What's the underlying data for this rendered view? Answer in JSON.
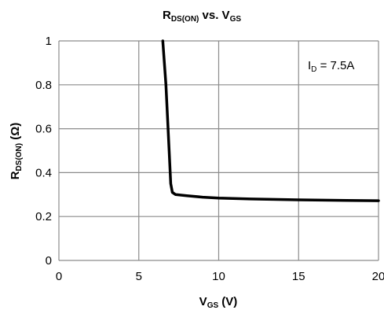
{
  "chart_data": {
    "type": "line",
    "title": {
      "main": "R",
      "main_sub": "DS(ON)",
      "mid": " vs. V",
      "end_sub": "GS"
    },
    "xlabel": {
      "main": "V",
      "sub": "GS",
      "rest": " (V)"
    },
    "ylabel": {
      "main": "R",
      "sub": "DS(ON)",
      "rest": " (Ω)"
    },
    "xlim": [
      0,
      20
    ],
    "ylim": [
      0,
      1
    ],
    "x_ticks": [
      0,
      5,
      10,
      15,
      20
    ],
    "x_tick_labels": [
      "0",
      "5",
      "10",
      "15",
      "20"
    ],
    "y_ticks": [
      0,
      0.2,
      0.4,
      0.6,
      0.8,
      1
    ],
    "y_tick_labels": [
      "0",
      "0.2",
      "0.4",
      "0.6",
      "0.8",
      "1"
    ],
    "grid": true,
    "annotation": {
      "main": "I",
      "sub": "D",
      "rest": " = 7.5A"
    },
    "series": [
      {
        "color": "#000000",
        "x": [
          6.5,
          6.7,
          6.9,
          7.0,
          7.1,
          7.3,
          8.0,
          9.0,
          10.0,
          12.0,
          15.0,
          18.0,
          20.0
        ],
        "y": [
          1.0,
          0.8,
          0.5,
          0.35,
          0.31,
          0.3,
          0.295,
          0.288,
          0.284,
          0.28,
          0.276,
          0.273,
          0.272
        ]
      }
    ]
  }
}
